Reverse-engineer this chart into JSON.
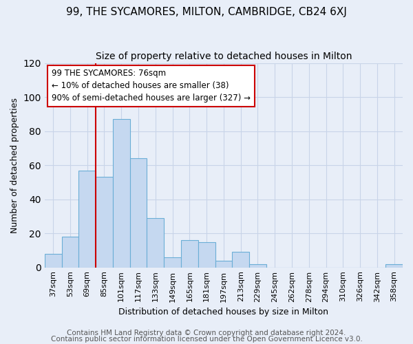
{
  "title1": "99, THE SYCAMORES, MILTON, CAMBRIDGE, CB24 6XJ",
  "title2": "Size of property relative to detached houses in Milton",
  "xlabel": "Distribution of detached houses by size in Milton",
  "ylabel": "Number of detached properties",
  "categories": [
    "37sqm",
    "53sqm",
    "69sqm",
    "85sqm",
    "101sqm",
    "117sqm",
    "133sqm",
    "149sqm",
    "165sqm",
    "181sqm",
    "197sqm",
    "213sqm",
    "229sqm",
    "245sqm",
    "262sqm",
    "278sqm",
    "294sqm",
    "310sqm",
    "326sqm",
    "342sqm",
    "358sqm"
  ],
  "values": [
    8,
    18,
    57,
    53,
    87,
    64,
    29,
    6,
    16,
    15,
    4,
    9,
    2,
    0,
    0,
    0,
    0,
    0,
    0,
    0,
    2
  ],
  "bar_color": "#c5d8f0",
  "bar_edge_color": "#6aaed6",
  "vline_x_index": 2.5,
  "vline_color": "#cc0000",
  "annotation_line1": "99 THE SYCAMORES: 76sqm",
  "annotation_line2": "← 10% of detached houses are smaller (38)",
  "annotation_line3": "90% of semi-detached houses are larger (327) →",
  "footer1": "Contains HM Land Registry data © Crown copyright and database right 2024.",
  "footer2": "Contains public sector information licensed under the Open Government Licence v3.0.",
  "background_color": "#e8eef8",
  "plot_bg_color": "#e8eef8",
  "grid_color": "#c8d4e8",
  "ylim": [
    0,
    120
  ],
  "title1_fontsize": 11,
  "title2_fontsize": 10,
  "xlabel_fontsize": 9,
  "ylabel_fontsize": 9,
  "tick_fontsize": 8,
  "footer_fontsize": 7.5,
  "annot_fontsize": 8.5
}
